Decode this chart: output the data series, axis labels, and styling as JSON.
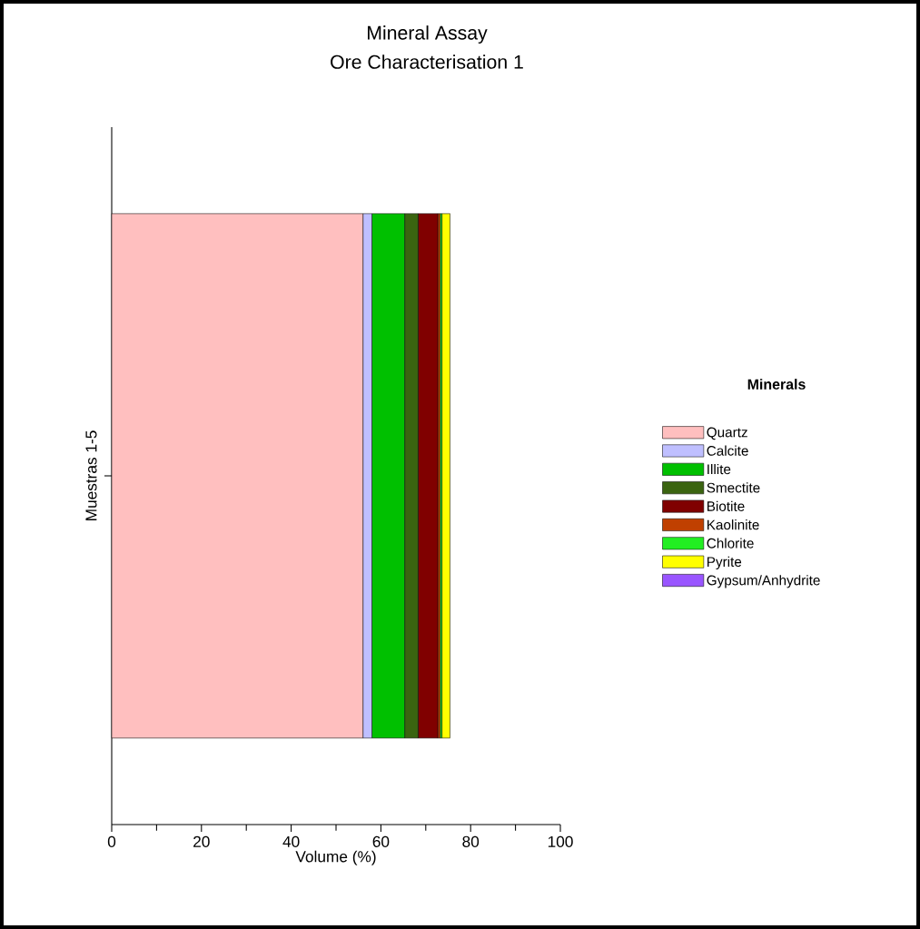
{
  "chart_data": {
    "type": "bar",
    "orientation": "horizontal",
    "stacked": true,
    "title": "Mineral Assay",
    "subtitle": "Ore Characterisation 1",
    "xlabel": "Volume (%)",
    "ylabel": "Muestras 1-5",
    "legend_title": "Minerals",
    "categories": [
      null
    ],
    "xlim": [
      0,
      100
    ],
    "xticks": [
      0,
      20,
      40,
      60,
      80,
      100
    ],
    "legend": "right",
    "grid": false,
    "series": [
      {
        "name": "Quartz",
        "color": "#ffbfbf",
        "values": [
          56
        ]
      },
      {
        "name": "Calcite",
        "color": "#bfbfff",
        "values": [
          2
        ]
      },
      {
        "name": "Illite",
        "color": "#00c000",
        "values": [
          7.3
        ]
      },
      {
        "name": "Smectite",
        "color": "#3a6410",
        "values": [
          3
        ]
      },
      {
        "name": "Biotite",
        "color": "#800000",
        "values": [
          4.4
        ]
      },
      {
        "name": "Kaolinite",
        "color": "#c04000",
        "values": [
          0.5
        ]
      },
      {
        "name": "Chlorite",
        "color": "#22ee22",
        "values": [
          0.4
        ]
      },
      {
        "name": "Pyrite",
        "color": "#ffff00",
        "values": [
          1.8
        ]
      },
      {
        "name": "Gypsum/Anhydrite",
        "color": "#9955ff",
        "values": [
          0
        ]
      }
    ]
  }
}
